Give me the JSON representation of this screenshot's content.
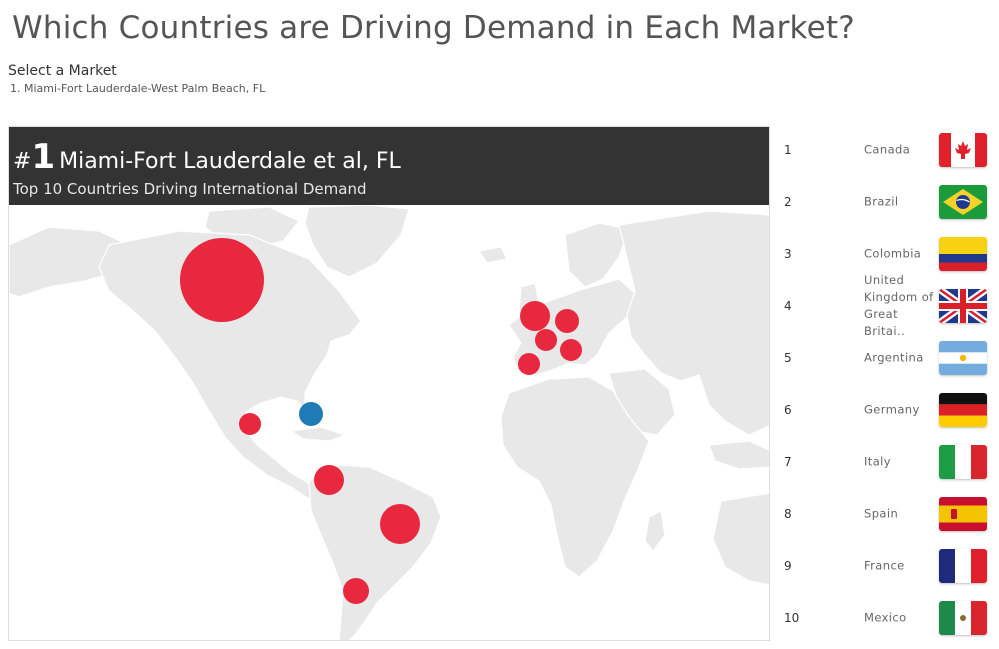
{
  "page": {
    "title": "Which Countries are Driving Demand in Each Market?"
  },
  "filter": {
    "label": "Select a Market",
    "selected": "1. Miami-Fort Lauderdale-West Palm Beach, FL"
  },
  "banner": {
    "hash": "#",
    "rank": "1",
    "market": "Miami-Fort Lauderdale et al, FL",
    "subtitle": "Top 10 Countries Driving International Demand"
  },
  "colors": {
    "demand": "#e8283f",
    "home_market": "#1f7ab5",
    "land": "#e8e8e8",
    "banner": "#333333"
  },
  "map_markers": [
    {
      "name": "Canada",
      "rank": 1,
      "color": "demand"
    },
    {
      "name": "Brazil",
      "rank": 2,
      "color": "demand"
    },
    {
      "name": "Colombia",
      "rank": 3,
      "color": "demand"
    },
    {
      "name": "United Kingdom",
      "rank": 4,
      "color": "demand"
    },
    {
      "name": "Argentina",
      "rank": 5,
      "color": "demand"
    },
    {
      "name": "Germany",
      "rank": 6,
      "color": "demand"
    },
    {
      "name": "Italy",
      "rank": 7,
      "color": "demand"
    },
    {
      "name": "Spain",
      "rank": 8,
      "color": "demand"
    },
    {
      "name": "France",
      "rank": 9,
      "color": "demand"
    },
    {
      "name": "Mexico",
      "rank": 10,
      "color": "demand"
    },
    {
      "name": "Miami",
      "rank": 0,
      "color": "home_market"
    }
  ],
  "countries": [
    {
      "rank": "1",
      "name": "Canada",
      "flag": "canada-flag-icon"
    },
    {
      "rank": "2",
      "name": "Brazil",
      "flag": "brazil-flag-icon"
    },
    {
      "rank": "3",
      "name": "Colombia",
      "flag": "colombia-flag-icon"
    },
    {
      "rank": "4",
      "name": "United Kingdom of Great Britai..",
      "flag": "uk-flag-icon"
    },
    {
      "rank": "5",
      "name": "Argentina",
      "flag": "argentina-flag-icon"
    },
    {
      "rank": "6",
      "name": "Germany",
      "flag": "germany-flag-icon"
    },
    {
      "rank": "7",
      "name": "Italy",
      "flag": "italy-flag-icon"
    },
    {
      "rank": "8",
      "name": "Spain",
      "flag": "spain-flag-icon"
    },
    {
      "rank": "9",
      "name": "France",
      "flag": "france-flag-icon"
    },
    {
      "rank": "10",
      "name": "Mexico",
      "flag": "mexico-flag-icon"
    }
  ]
}
